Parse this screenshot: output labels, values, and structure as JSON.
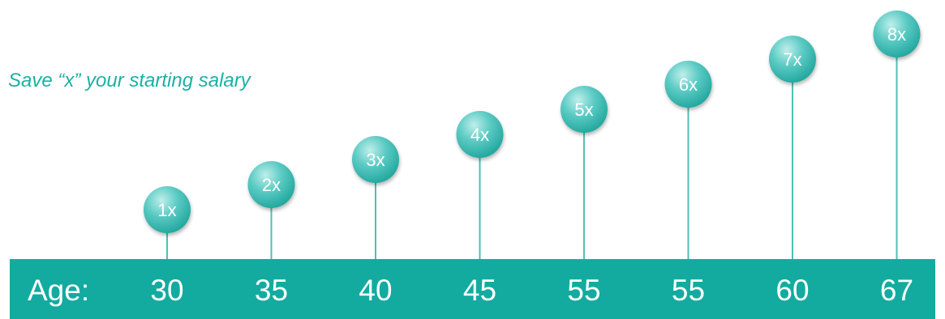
{
  "colors": {
    "accent": "#13aba0",
    "subtitle": "#19b2a4",
    "bubble_light": "#bfeeeb",
    "bubble_mid": "#5ccbc4",
    "bubble_dark": "#1ea59c",
    "stem": "#4fbfb7"
  },
  "chart_data": {
    "type": "scatter",
    "subtitle": "Save “x” your starting salary",
    "x_axis_title": "Age:",
    "categories": [
      "30",
      "35",
      "40",
      "45",
      "55",
      "55",
      "60",
      "67"
    ],
    "values": [
      1,
      2,
      3,
      4,
      5,
      6,
      7,
      8
    ],
    "labels": [
      "1x",
      "2x",
      "3x",
      "4x",
      "5x",
      "6x",
      "7x",
      "8x"
    ],
    "ylim": [
      1,
      8
    ],
    "grid": false
  }
}
